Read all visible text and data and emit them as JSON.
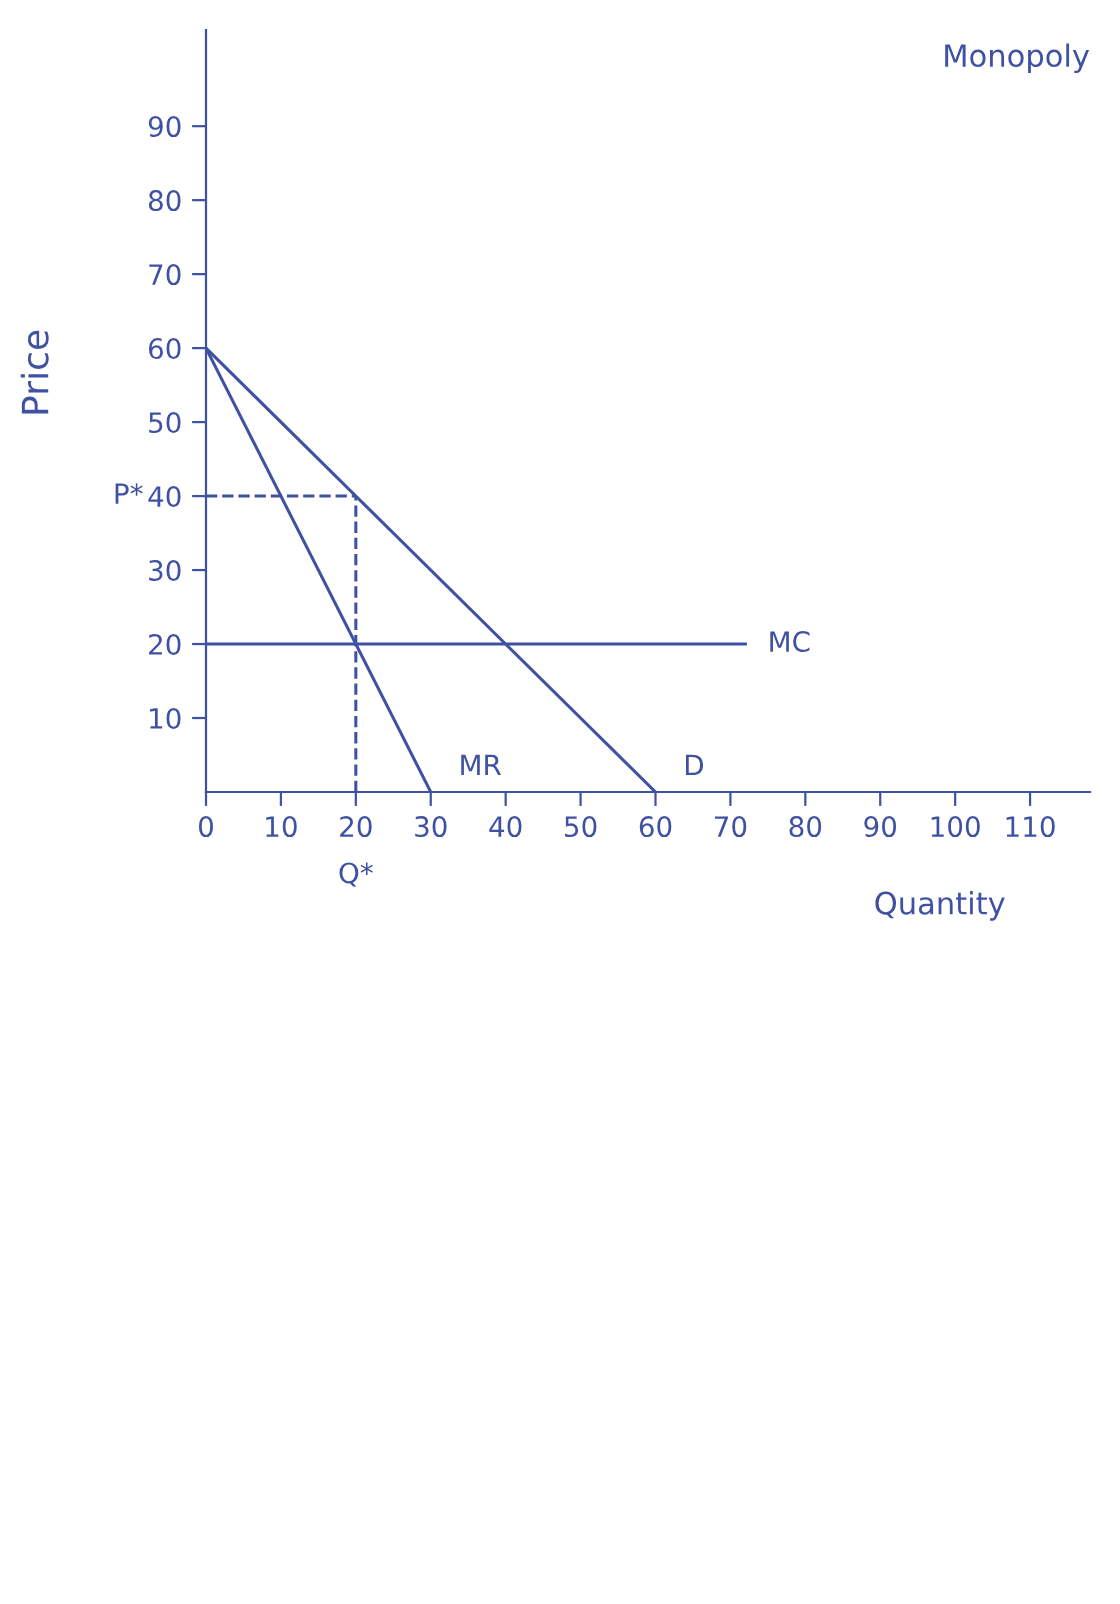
{
  "chart_data": {
    "type": "line",
    "title": "Monopoly",
    "xlabel": "Quantity",
    "ylabel": "Price",
    "xlim": [
      0,
      118
    ],
    "ylim": [
      0,
      103
    ],
    "xticks": [
      0,
      10,
      20,
      30,
      40,
      50,
      60,
      70,
      80,
      90,
      100,
      110
    ],
    "yticks": [
      10,
      20,
      30,
      40,
      50,
      60,
      70,
      80,
      90
    ],
    "grid": false,
    "legend": false,
    "marker": "none",
    "series": [
      {
        "name": "D",
        "color": "#3f51a3",
        "x": [
          0,
          60
        ],
        "values": [
          60,
          0
        ],
        "line_style": "solid"
      },
      {
        "name": "MR",
        "color": "#3f51a3",
        "x": [
          0,
          30
        ],
        "values": [
          60,
          0
        ],
        "line_style": "solid"
      },
      {
        "name": "MC",
        "color": "#3f51a3",
        "x": [
          0,
          72
        ],
        "values": [
          20,
          20
        ],
        "line_style": "solid"
      },
      {
        "color": "#3f51a3",
        "x": [
          0,
          20
        ],
        "values": [
          40,
          40
        ],
        "line_style": "dashed"
      },
      {
        "color": "#3f51a3",
        "x": [
          20,
          20
        ],
        "values": [
          0,
          40
        ],
        "line_style": "dashed"
      }
    ],
    "annotations": [
      {
        "text": "P*",
        "x": 0,
        "y": 40
      },
      {
        "text": "Q*",
        "x": 20,
        "y": 0
      }
    ]
  }
}
